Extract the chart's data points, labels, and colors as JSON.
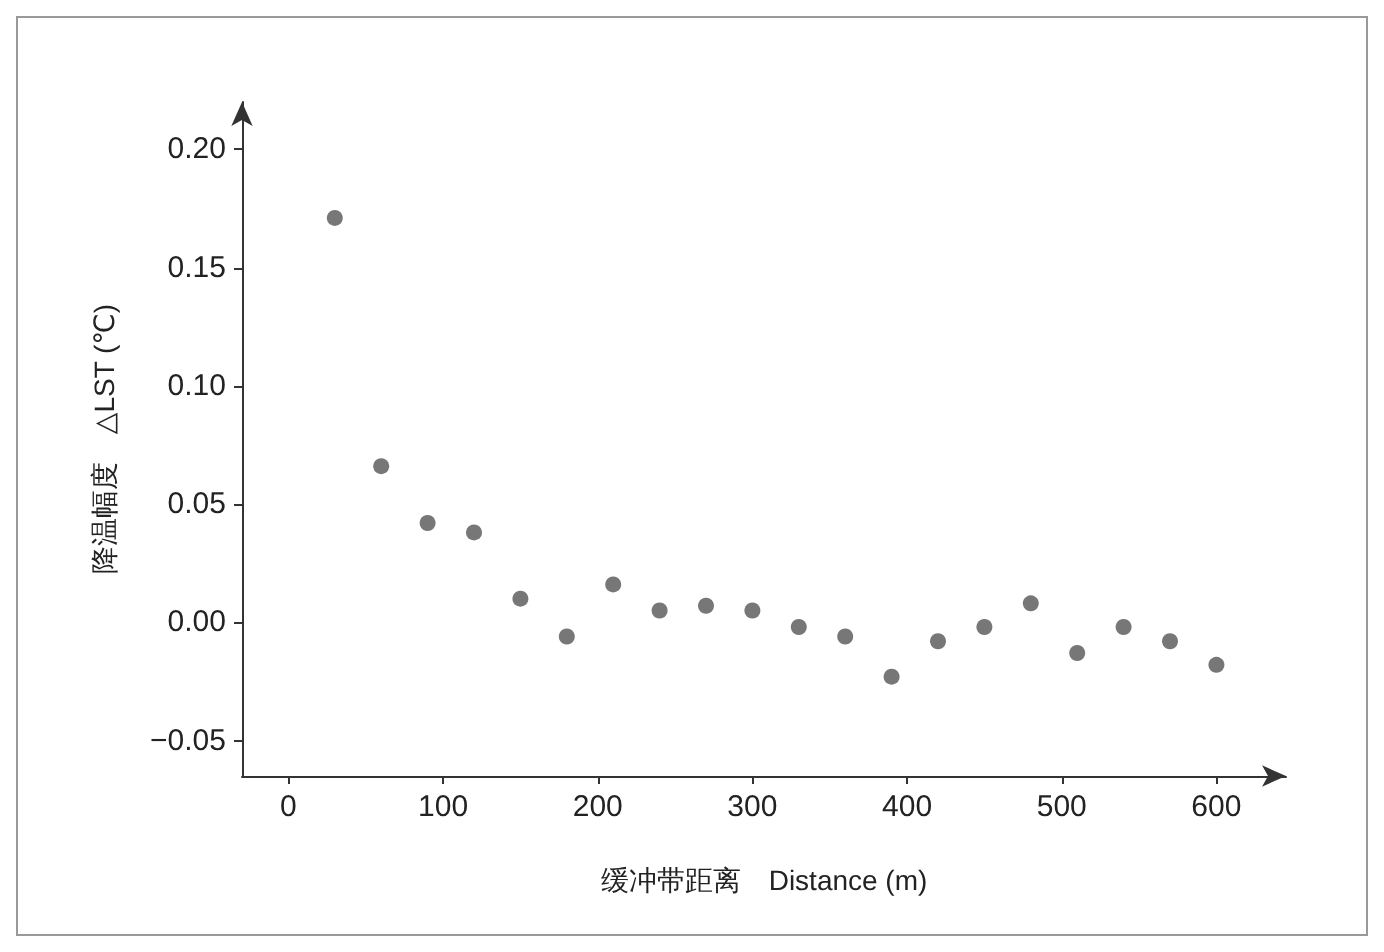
{
  "chart_data": {
    "type": "scatter",
    "xlabel": "缓冲带距离　Distance (m)",
    "ylabel": "降温幅度　△LST (℃)",
    "x": [
      30,
      60,
      90,
      120,
      150,
      180,
      210,
      240,
      270,
      300,
      330,
      360,
      390,
      420,
      450,
      480,
      510,
      540,
      570,
      600
    ],
    "values": [
      0.171,
      0.066,
      0.042,
      0.038,
      0.01,
      -0.006,
      0.016,
      0.005,
      0.007,
      0.005,
      -0.002,
      -0.006,
      -0.023,
      -0.008,
      -0.002,
      0.008,
      -0.013,
      -0.002,
      -0.008,
      -0.018
    ],
    "color": "#555555",
    "marker": "circle",
    "grid": false,
    "xlim": [
      -30,
      645
    ],
    "xticks": [
      0,
      100,
      200,
      300,
      400,
      500,
      600
    ],
    "ylim": [
      -0.065,
      0.22
    ],
    "yticks": [
      {
        "value": -0.05,
        "label": "−0.05"
      },
      {
        "value": 0,
        "label": "0.00"
      },
      {
        "value": 0.05,
        "label": "0.05"
      },
      {
        "value": 0.1,
        "label": "0.10"
      },
      {
        "value": 0.15,
        "label": "0.15"
      },
      {
        "value": 0.2,
        "label": "0.20"
      }
    ]
  }
}
